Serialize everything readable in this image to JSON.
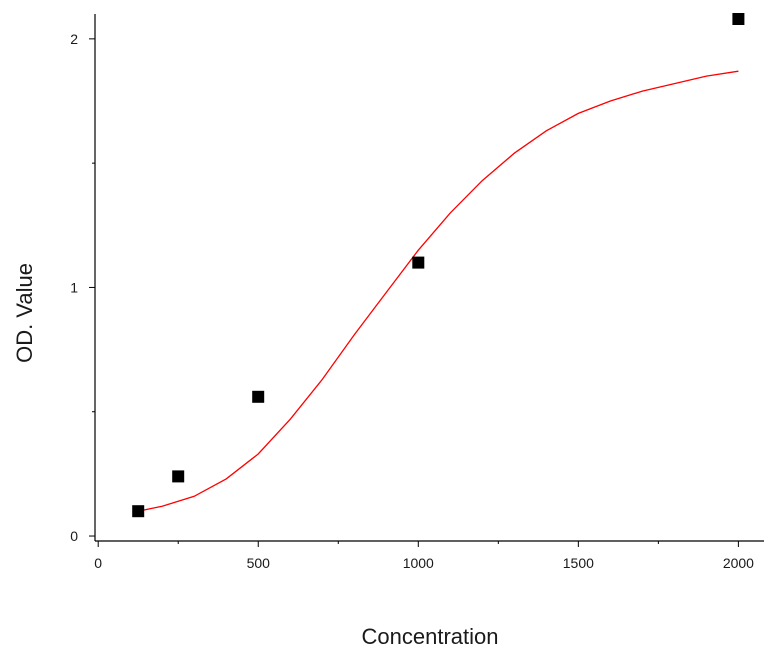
{
  "chart_data": {
    "type": "scatter",
    "title": "",
    "xlabel": "Concentration",
    "ylabel": "OD. Value",
    "xlim": [
      -10,
      2080
    ],
    "ylim": [
      -0.02,
      2.1
    ],
    "x_ticks": [
      0,
      500,
      1000,
      1500,
      2000
    ],
    "x_tick_labels": [
      "0",
      "500",
      "1000",
      "1500",
      "2000"
    ],
    "x_minor_ticks": [
      250,
      750,
      1250,
      1750
    ],
    "y_ticks": [
      0,
      1,
      2
    ],
    "y_tick_labels": [
      "0",
      "1",
      "2"
    ],
    "y_minor_ticks": [
      0.5,
      1.5
    ],
    "grid": false,
    "series": [
      {
        "kind": "points",
        "marker": "square",
        "color": "#000000",
        "x": [
          125,
          250,
          500,
          1000,
          2000
        ],
        "y": [
          0.1,
          0.24,
          0.56,
          1.1,
          2.08
        ]
      },
      {
        "kind": "fit-curve",
        "color": "#ff0000",
        "x": [
          125,
          200,
          300,
          400,
          500,
          600,
          700,
          800,
          900,
          1000,
          1100,
          1200,
          1300,
          1400,
          1500,
          1600,
          1700,
          1800,
          1900,
          2000
        ],
        "y": [
          0.1,
          0.12,
          0.16,
          0.23,
          0.33,
          0.47,
          0.63,
          0.81,
          0.98,
          1.15,
          1.3,
          1.43,
          1.54,
          1.63,
          1.7,
          1.75,
          1.79,
          1.82,
          1.85,
          1.87
        ]
      }
    ]
  }
}
